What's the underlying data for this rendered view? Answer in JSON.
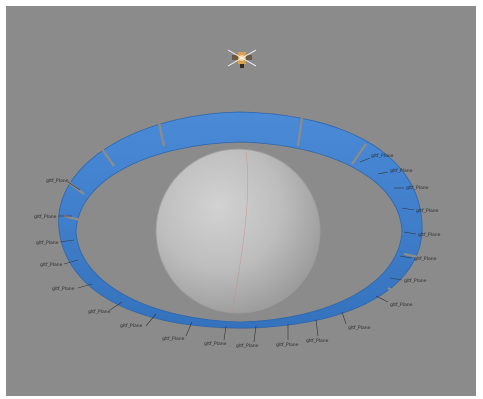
{
  "viewer": {
    "background": "#8b8b8b",
    "ring_color": "#3f7fcc",
    "sphere_color": "#bdbdbd"
  },
  "ring_labels": [
    "gltf_Plane",
    "gltf_Plane",
    "gltf_Plane",
    "gltf_Plane",
    "gltf_Plane",
    "gltf_Plane",
    "gltf_Plane",
    "gltf_Plane",
    "gltf_Plane",
    "gltf_Plane",
    "gltf_Plane",
    "gltf_Plane",
    "gltf_Plane",
    "gltf_Plane",
    "gltf_Plane",
    "gltf_Plane",
    "gltf_Plane",
    "gltf_Plane",
    "gltf_Plane",
    "gltf_Plane",
    "gltf_Plane"
  ]
}
